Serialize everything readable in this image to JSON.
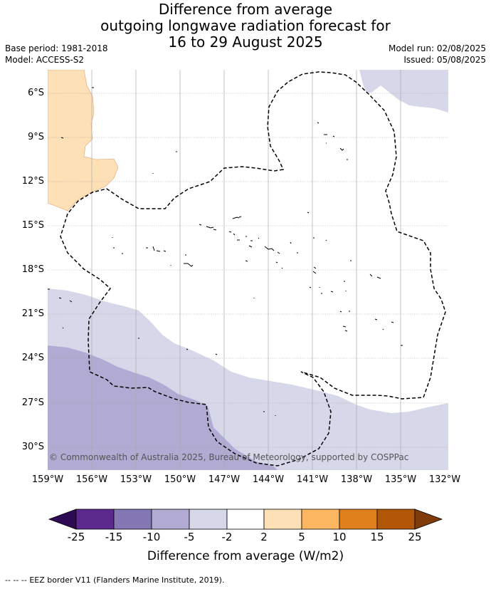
{
  "title": [
    "Difference from average",
    "outgoing longwave radiation forecast for",
    "16 to 29 August 2025"
  ],
  "base_period": "Base period: 1981-2018",
  "model": "Model: ACCESS-S2",
  "model_run": "Model run: 02/08/2025",
  "issued": "Issued: 05/08/2025",
  "lat_labels": [
    "6°S",
    "9°S",
    "12°S",
    "15°S",
    "18°S",
    "21°S",
    "24°S",
    "27°S",
    "30°S"
  ],
  "lon_labels": [
    "159°W",
    "156°W",
    "153°W",
    "150°W",
    "147°W",
    "144°W",
    "141°W",
    "138°W",
    "135°W",
    "132°W"
  ],
  "copyright": "© Commonwealth of Australia 2025, Bureau of Meteorology, supported by COSPPac",
  "colorbar": {
    "ticks": [
      "-25",
      "-15",
      "-10",
      "-5",
      "-2",
      "2",
      "5",
      "10",
      "15",
      "25"
    ],
    "colors": [
      "#5b2a8c",
      "#8478b4",
      "#b1aad2",
      "#d7d7ea",
      "#ffffff",
      "#fde0b6",
      "#fdb762",
      "#e0801c",
      "#b25607"
    ],
    "under_color": "#2e0a55",
    "over_color": "#7f3b08",
    "label": "Difference from average (W/m2)"
  },
  "legend_note": "EEZ border V11 (Flanders Marine Institute, 2019).",
  "legend_symbol": "-- -- --"
}
